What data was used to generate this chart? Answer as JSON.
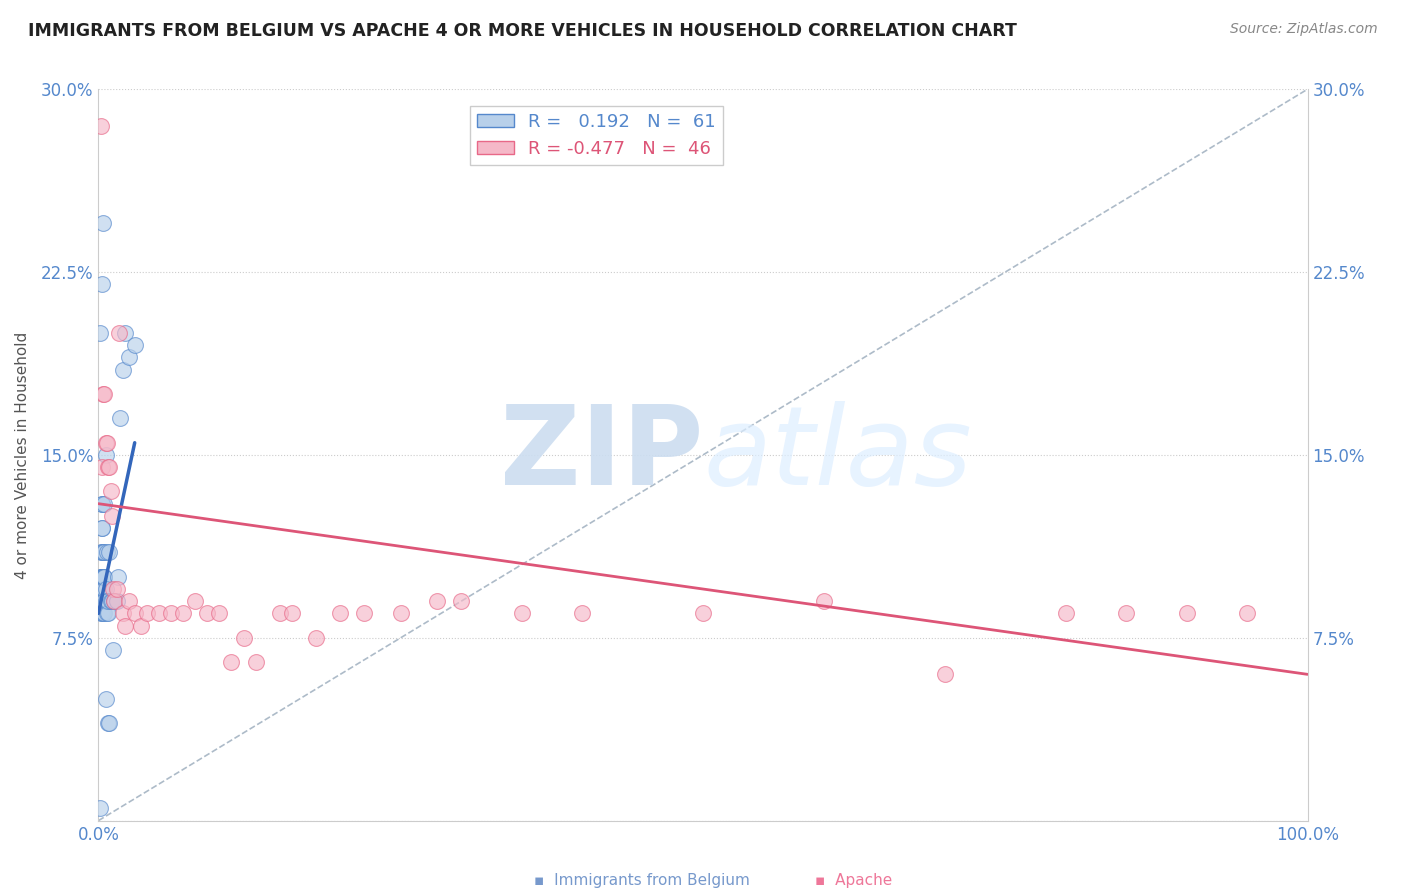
{
  "title": "IMMIGRANTS FROM BELGIUM VS APACHE 4 OR MORE VEHICLES IN HOUSEHOLD CORRELATION CHART",
  "source": "Source: ZipAtlas.com",
  "ylabel": "4 or more Vehicles in Household",
  "xlim": [
    0.0,
    1.0
  ],
  "ylim": [
    0.0,
    0.3
  ],
  "legend_blue_R": "0.192",
  "legend_blue_N": "61",
  "legend_pink_R": "-0.477",
  "legend_pink_N": "46",
  "blue_fill": "#b8d0ea",
  "blue_edge": "#5588cc",
  "pink_fill": "#f5b8c8",
  "pink_edge": "#e86888",
  "blue_line_color": "#3366bb",
  "pink_line_color": "#dd5577",
  "dashed_color": "#99aabb",
  "watermark_zip": "ZIP",
  "watermark_atlas": "atlas",
  "watermark_color": "#ccddf0",
  "blue_scatter_x": [
    0.001,
    0.001,
    0.001,
    0.001,
    0.002,
    0.002,
    0.002,
    0.002,
    0.002,
    0.002,
    0.002,
    0.002,
    0.003,
    0.003,
    0.003,
    0.003,
    0.003,
    0.003,
    0.003,
    0.003,
    0.003,
    0.003,
    0.003,
    0.004,
    0.004,
    0.004,
    0.004,
    0.004,
    0.004,
    0.004,
    0.004,
    0.005,
    0.005,
    0.005,
    0.005,
    0.005,
    0.005,
    0.005,
    0.006,
    0.006,
    0.006,
    0.006,
    0.007,
    0.007,
    0.007,
    0.008,
    0.008,
    0.008,
    0.009,
    0.009,
    0.01,
    0.011,
    0.012,
    0.013,
    0.015,
    0.016,
    0.018,
    0.02,
    0.022,
    0.025,
    0.03
  ],
  "blue_scatter_y": [
    0.005,
    0.09,
    0.095,
    0.2,
    0.085,
    0.09,
    0.09,
    0.095,
    0.1,
    0.1,
    0.1,
    0.11,
    0.085,
    0.09,
    0.09,
    0.1,
    0.1,
    0.11,
    0.12,
    0.12,
    0.13,
    0.13,
    0.22,
    0.085,
    0.09,
    0.095,
    0.09,
    0.1,
    0.1,
    0.11,
    0.245,
    0.085,
    0.09,
    0.095,
    0.1,
    0.1,
    0.11,
    0.13,
    0.05,
    0.09,
    0.095,
    0.15,
    0.085,
    0.09,
    0.11,
    0.04,
    0.085,
    0.09,
    0.04,
    0.11,
    0.09,
    0.09,
    0.07,
    0.09,
    0.09,
    0.1,
    0.165,
    0.185,
    0.2,
    0.19,
    0.195
  ],
  "pink_scatter_x": [
    0.002,
    0.003,
    0.004,
    0.005,
    0.006,
    0.007,
    0.008,
    0.009,
    0.01,
    0.011,
    0.012,
    0.013,
    0.015,
    0.017,
    0.02,
    0.022,
    0.025,
    0.03,
    0.035,
    0.04,
    0.05,
    0.06,
    0.07,
    0.08,
    0.09,
    0.1,
    0.11,
    0.12,
    0.13,
    0.15,
    0.16,
    0.18,
    0.2,
    0.22,
    0.25,
    0.28,
    0.3,
    0.35,
    0.4,
    0.5,
    0.6,
    0.7,
    0.8,
    0.85,
    0.9,
    0.95
  ],
  "pink_scatter_y": [
    0.285,
    0.145,
    0.175,
    0.175,
    0.155,
    0.155,
    0.145,
    0.145,
    0.135,
    0.125,
    0.095,
    0.09,
    0.095,
    0.2,
    0.085,
    0.08,
    0.09,
    0.085,
    0.08,
    0.085,
    0.085,
    0.085,
    0.085,
    0.09,
    0.085,
    0.085,
    0.065,
    0.075,
    0.065,
    0.085,
    0.085,
    0.075,
    0.085,
    0.085,
    0.085,
    0.09,
    0.09,
    0.085,
    0.085,
    0.085,
    0.09,
    0.06,
    0.085,
    0.085,
    0.085,
    0.085
  ],
  "blue_trend_x": [
    0.0,
    0.03
  ],
  "blue_trend_y": [
    0.085,
    0.155
  ],
  "pink_trend_x": [
    0.0,
    1.0
  ],
  "pink_trend_y": [
    0.13,
    0.06
  ],
  "diag_line_x": [
    0.0,
    1.0
  ],
  "diag_line_y": [
    0.0,
    0.3
  ]
}
